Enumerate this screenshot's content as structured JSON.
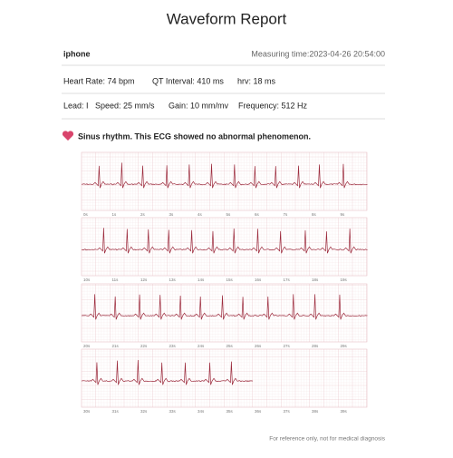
{
  "title": "Waveform Report",
  "device": "iphone",
  "measuring_time": "Measuring time:2023-04-26 20:54:00",
  "metrics": [
    "Heart Rate:  74 bpm",
    "QT Interval:  410 ms",
    "hrv:  18 ms"
  ],
  "settings": [
    "Lead: I",
    "Speed: 25 mm/s",
    "Gain: 10 mm/mv",
    "Frequency: 512 Hz"
  ],
  "conclusion": "Sinus rhythm. This ECG showed no abnormal phenomenon.",
  "strips": [
    {
      "ticks": [
        "0s",
        "1s",
        "2s",
        "3s",
        "4s",
        "5s",
        "6s",
        "7s",
        "8s",
        "9s"
      ]
    },
    {
      "ticks": [
        "10s",
        "11s",
        "12s",
        "13s",
        "14s",
        "15s",
        "16s",
        "17s",
        "18s",
        "19s"
      ]
    },
    {
      "ticks": [
        "20s",
        "21s",
        "22s",
        "23s",
        "24s",
        "25s",
        "26s",
        "27s",
        "28s",
        "29s"
      ]
    },
    {
      "ticks": [
        "30s",
        "31s",
        "32s",
        "33s",
        "34s",
        "35s",
        "36s",
        "37s",
        "38s",
        "39s"
      ]
    }
  ],
  "footer": "For reference only, not for medical diagnosis"
}
